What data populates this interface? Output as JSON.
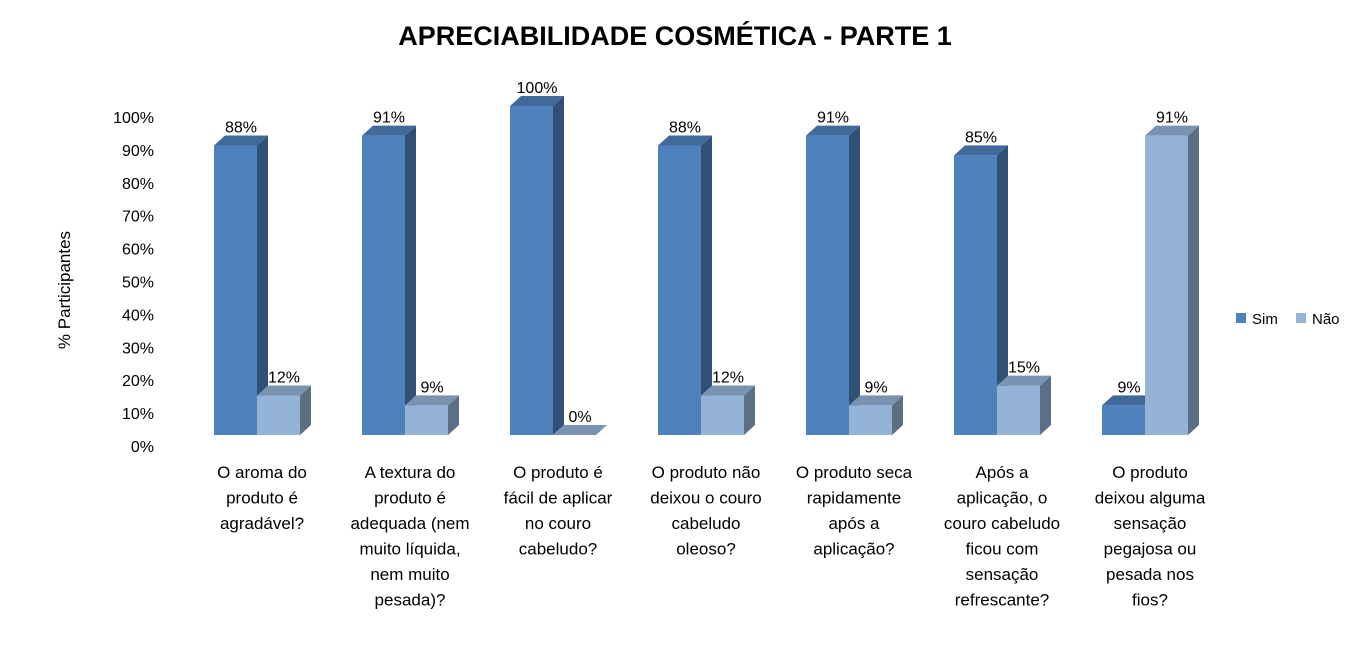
{
  "chart_data": {
    "type": "bar",
    "title": "APRECIABILIDADE COSMÉTICA - PARTE 1",
    "xlabel": "",
    "ylabel": "% Participantes",
    "ylim": [
      0,
      100
    ],
    "yticks": [
      "0%",
      "10%",
      "20%",
      "30%",
      "40%",
      "50%",
      "60%",
      "70%",
      "80%",
      "90%",
      "100%"
    ],
    "categories": [
      [
        "O aroma do",
        "produto é",
        "agradável?"
      ],
      [
        "A textura do",
        "produto é",
        "adequada (nem",
        "muito líquida,",
        "nem muito",
        "pesada)?"
      ],
      [
        "O produto é",
        "fácil de aplicar",
        "no couro",
        "cabeludo?"
      ],
      [
        "O produto não",
        "deixou o couro",
        "cabeludo",
        "oleoso?"
      ],
      [
        "O produto seca",
        "rapidamente",
        "após a",
        "aplicação?"
      ],
      [
        "Após a",
        "aplicação, o",
        "couro cabeludo",
        "ficou com",
        "sensação",
        "refrescante?"
      ],
      [
        "O produto",
        "deixou alguma",
        "sensação",
        "pegajosa ou",
        "pesada nos",
        "fios?"
      ]
    ],
    "series": [
      {
        "name": "Sim",
        "values": [
          88,
          91,
          100,
          88,
          91,
          85,
          9
        ],
        "labels": [
          "88%",
          "91%",
          "100%",
          "88%",
          "91%",
          "85%",
          "9%"
        ],
        "color": "#4F81BD"
      },
      {
        "name": "Não",
        "values": [
          12,
          9,
          0,
          12,
          9,
          15,
          91
        ],
        "labels": [
          "12%",
          "9%",
          "0%",
          "12%",
          "9%",
          "15%",
          "91%"
        ],
        "color": "#95B3D7"
      }
    ],
    "legend": "right",
    "grid": false,
    "style": "3d-column"
  }
}
